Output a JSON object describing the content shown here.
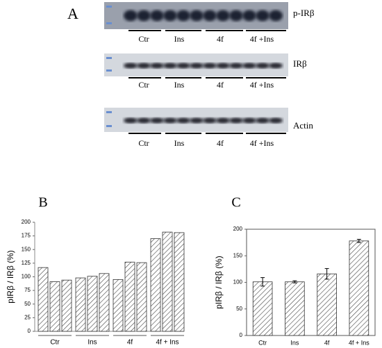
{
  "panel_a": {
    "label": "A",
    "blots": [
      {
        "name": "p-IRβ",
        "groups": [
          "Ctr",
          "Ins",
          "4f",
          "4f +Ins"
        ]
      },
      {
        "name": "IRβ",
        "groups": [
          "Ctr",
          "Ins",
          "4f",
          "4f +Ins"
        ]
      },
      {
        "name": "Actin",
        "groups": [
          "Ctr",
          "Ins",
          "4f",
          "4f +Ins"
        ]
      }
    ]
  },
  "chart_data": [
    {
      "type": "grouped-bar",
      "label": "B",
      "ylabel": "pIRβ / IRβ (%)",
      "groups": [
        "Ctr",
        "Ins",
        "4f",
        "4f + Ins"
      ],
      "values": [
        [
          117,
          91,
          94
        ],
        [
          98,
          101,
          106
        ],
        [
          95,
          127,
          126
        ],
        [
          170,
          182,
          181
        ]
      ],
      "ylim": [
        0,
        200
      ],
      "yticks": [
        0,
        25,
        50,
        75,
        100,
        125,
        150,
        175,
        200
      ]
    },
    {
      "type": "bar",
      "label": "C",
      "ylabel": "pIRβ / IRβ (%)",
      "categories": [
        "Ctr",
        "Ins",
        "4f",
        "4f + Ins"
      ],
      "values": [
        101,
        101,
        116,
        178
      ],
      "errors": [
        8,
        2,
        10,
        3
      ],
      "ylim": [
        0,
        200
      ],
      "yticks": [
        0,
        50,
        100,
        150,
        200
      ]
    }
  ]
}
